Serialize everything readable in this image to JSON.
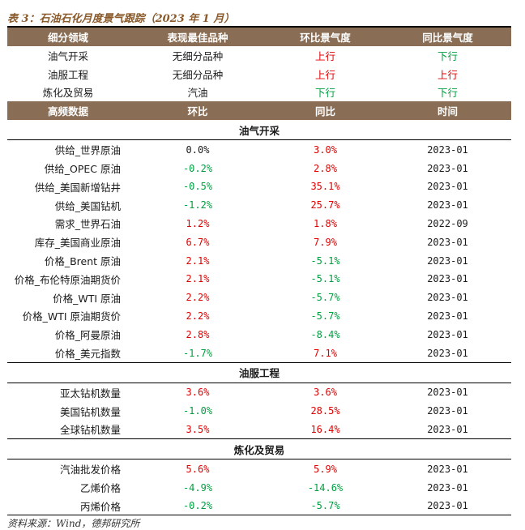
{
  "title": "表 3：石油石化月度景气跟踪（2023 年 1 月）",
  "summary": {
    "headers": [
      "细分领域",
      "表现最佳品种",
      "环比景气度",
      "同比景气度"
    ],
    "rows": [
      {
        "field": "油气开采",
        "best": "无细分品种",
        "mom": "上行",
        "mom_color": "#e00000",
        "yoy": "下行",
        "yoy_color": "#00a040"
      },
      {
        "field": "油服工程",
        "best": "无细分品种",
        "mom": "上行",
        "mom_color": "#e00000",
        "yoy": "上行",
        "yoy_color": "#e00000"
      },
      {
        "field": "炼化及贸易",
        "best": "汽油",
        "mom": "下行",
        "mom_color": "#00a040",
        "yoy": "下行",
        "yoy_color": "#00a040"
      }
    ]
  },
  "detail": {
    "headers": [
      "高频数据",
      "环比",
      "同比",
      "时间"
    ],
    "sections": [
      {
        "name": "油气开采",
        "rows": [
          {
            "label": "供给_世界原油",
            "mom": "0.0%",
            "yoy": "3.0%",
            "date": "2023-01"
          },
          {
            "label": "供给_OPEC 原油",
            "mom": "-0.2%",
            "yoy": "2.8%",
            "date": "2023-01"
          },
          {
            "label": "供给_美国新增钻井",
            "mom": "-0.5%",
            "yoy": "35.1%",
            "date": "2023-01"
          },
          {
            "label": "供给_美国钻机",
            "mom": "-1.2%",
            "yoy": "25.7%",
            "date": "2023-01"
          },
          {
            "label": "需求_世界石油",
            "mom": "1.2%",
            "yoy": "1.8%",
            "date": "2022-09"
          },
          {
            "label": "库存_美国商业原油",
            "mom": "6.7%",
            "yoy": "7.9%",
            "date": "2023-01"
          },
          {
            "label": "价格_Brent 原油",
            "mom": "2.1%",
            "yoy": "-5.1%",
            "date": "2023-01"
          },
          {
            "label": "价格_布伦特原油期货价",
            "mom": "2.1%",
            "yoy": "-5.1%",
            "date": "2023-01"
          },
          {
            "label": "价格_WTI 原油",
            "mom": "2.2%",
            "yoy": "-5.7%",
            "date": "2023-01"
          },
          {
            "label": "价格_WTI 原油期货价",
            "mom": "2.2%",
            "yoy": "-5.7%",
            "date": "2023-01"
          },
          {
            "label": "价格_阿曼原油",
            "mom": "2.8%",
            "yoy": "-8.4%",
            "date": "2023-01"
          },
          {
            "label": "价格_美元指数",
            "mom": "-1.7%",
            "yoy": "7.1%",
            "date": "2023-01"
          }
        ]
      },
      {
        "name": "油服工程",
        "rows": [
          {
            "label": "亚太钻机数量",
            "mom": "3.6%",
            "yoy": "3.6%",
            "date": "2023-01"
          },
          {
            "label": "美国钻机数量",
            "mom": "-1.0%",
            "yoy": "28.5%",
            "date": "2023-01"
          },
          {
            "label": "全球钻机数量",
            "mom": "3.5%",
            "yoy": "16.4%",
            "date": "2023-01"
          }
        ]
      },
      {
        "name": "炼化及贸易",
        "rows": [
          {
            "label": "汽油批发价格",
            "mom": "5.6%",
            "yoy": "5.9%",
            "date": "2023-01"
          },
          {
            "label": "乙烯价格",
            "mom": "-4.9%",
            "yoy": "-14.6%",
            "date": "2023-01"
          },
          {
            "label": "丙烯价格",
            "mom": "-0.2%",
            "yoy": "-5.7%",
            "date": "2023-01"
          }
        ]
      }
    ]
  },
  "colors": {
    "header_bg": "#8a6d55",
    "up": "#e00000",
    "down": "#00a040"
  },
  "source": "资料来源：Wind，德邦研究所"
}
